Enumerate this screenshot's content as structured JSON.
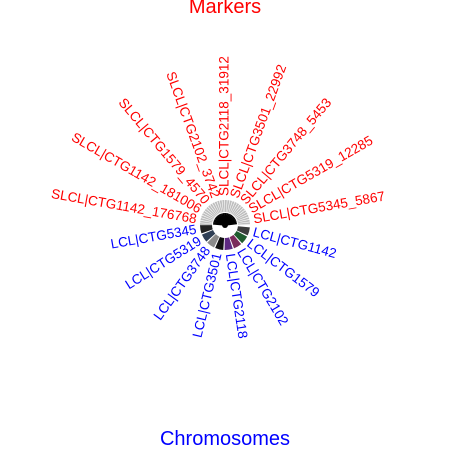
{
  "title_top": "Markers",
  "title_bottom": "Chromosomes",
  "colors": {
    "markers": "#ff0000",
    "chromosomes": "#0000ff",
    "marker_track": "#bebebe",
    "spokes": "#000000"
  },
  "markers": [
    "SLCL|CTG1142_176768",
    "SLCL|CTG1142_181006",
    "SLCL|CTG1579_4570",
    "SLCL|CTG2102_3742",
    "SLCL|CTG2118_31912",
    "SLCL|CTG3501_22992",
    "SLCL|CTG3748_5453",
    "SLCL|CTG5319_12285",
    "SLCL|CTG5345_5867"
  ],
  "chromosomes": [
    {
      "name": "LCL|CTG1142",
      "color": "#3d3d3d"
    },
    {
      "name": "LCL|CTG1579",
      "color": "#1f5c2e"
    },
    {
      "name": "LCL|CTG2102",
      "color": "#7a2a5a"
    },
    {
      "name": "LCL|CTG2118",
      "color": "#5e2a82"
    },
    {
      "name": "LCL|CTG3501",
      "color": "#111111"
    },
    {
      "name": "LCL|CTG3748",
      "color": "#8a8a8a"
    },
    {
      "name": "LCL|CTG5319",
      "color": "#2f3f55"
    },
    {
      "name": "LCL|CTG5345",
      "color": "#222222"
    }
  ]
}
